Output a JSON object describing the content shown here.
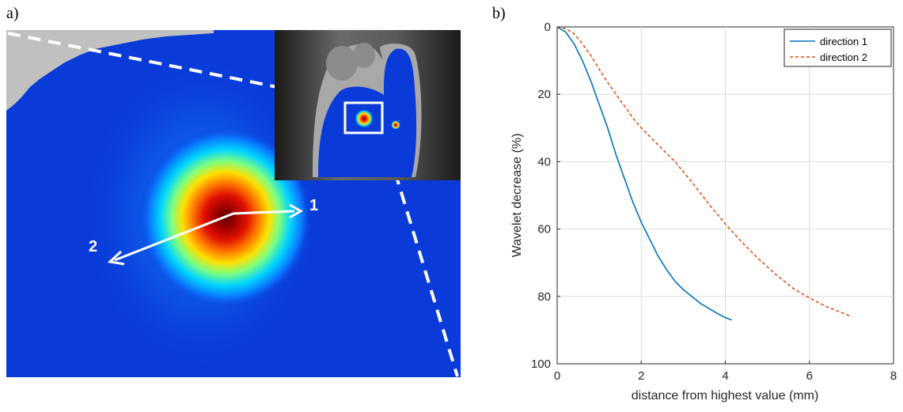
{
  "panels": {
    "a_label": "a)",
    "b_label": "b)"
  },
  "heatmap": {
    "arrow_1_label": "1",
    "arrow_2_label": "2",
    "colors": {
      "background": "#0a3bd8",
      "hot": "#8a0000",
      "gray": "#c0c0c0",
      "arrow": "#ffffff"
    }
  },
  "chart_data": {
    "type": "line",
    "xlabel": "distance from highest value (mm)",
    "ylabel": "Wavelet decrease (%)",
    "xlim": [
      0,
      8
    ],
    "ylim": [
      0,
      100
    ],
    "y_reversed": true,
    "x_ticks": [
      "0",
      "2",
      "4",
      "6",
      "8"
    ],
    "y_ticks": [
      "0",
      "20",
      "40",
      "60",
      "80",
      "100"
    ],
    "grid": true,
    "legend_position": "top-right",
    "series": [
      {
        "name": "direction 1",
        "color": "#0072bd",
        "style": "solid",
        "x": [
          0,
          0.2,
          0.4,
          0.6,
          0.8,
          1.0,
          1.2,
          1.4,
          1.6,
          1.8,
          2.0,
          2.2,
          2.4,
          2.6,
          2.8,
          3.0,
          3.2,
          3.4,
          3.6,
          3.8,
          4.0,
          4.15
        ],
        "y": [
          0,
          1.5,
          5,
          10,
          16,
          23,
          30,
          38,
          45,
          52,
          58,
          63,
          68,
          72,
          75.5,
          78,
          80,
          82,
          83.5,
          85,
          86.3,
          87
        ]
      },
      {
        "name": "direction 2",
        "color": "#d95319",
        "style": "dashed",
        "x": [
          0,
          0.2,
          0.4,
          0.6,
          0.8,
          1.0,
          1.2,
          1.4,
          1.6,
          1.8,
          2.0,
          2.4,
          2.8,
          3.2,
          3.6,
          4.0,
          4.4,
          4.8,
          5.2,
          5.6,
          6.0,
          6.4,
          6.8,
          7.0
        ],
        "y": [
          0,
          0.5,
          2,
          5,
          8.5,
          12.5,
          16.5,
          20,
          23.5,
          27,
          30,
          35,
          40,
          46,
          52.5,
          58.5,
          64,
          69,
          73.5,
          77.5,
          80.5,
          83,
          85,
          86
        ]
      }
    ]
  }
}
